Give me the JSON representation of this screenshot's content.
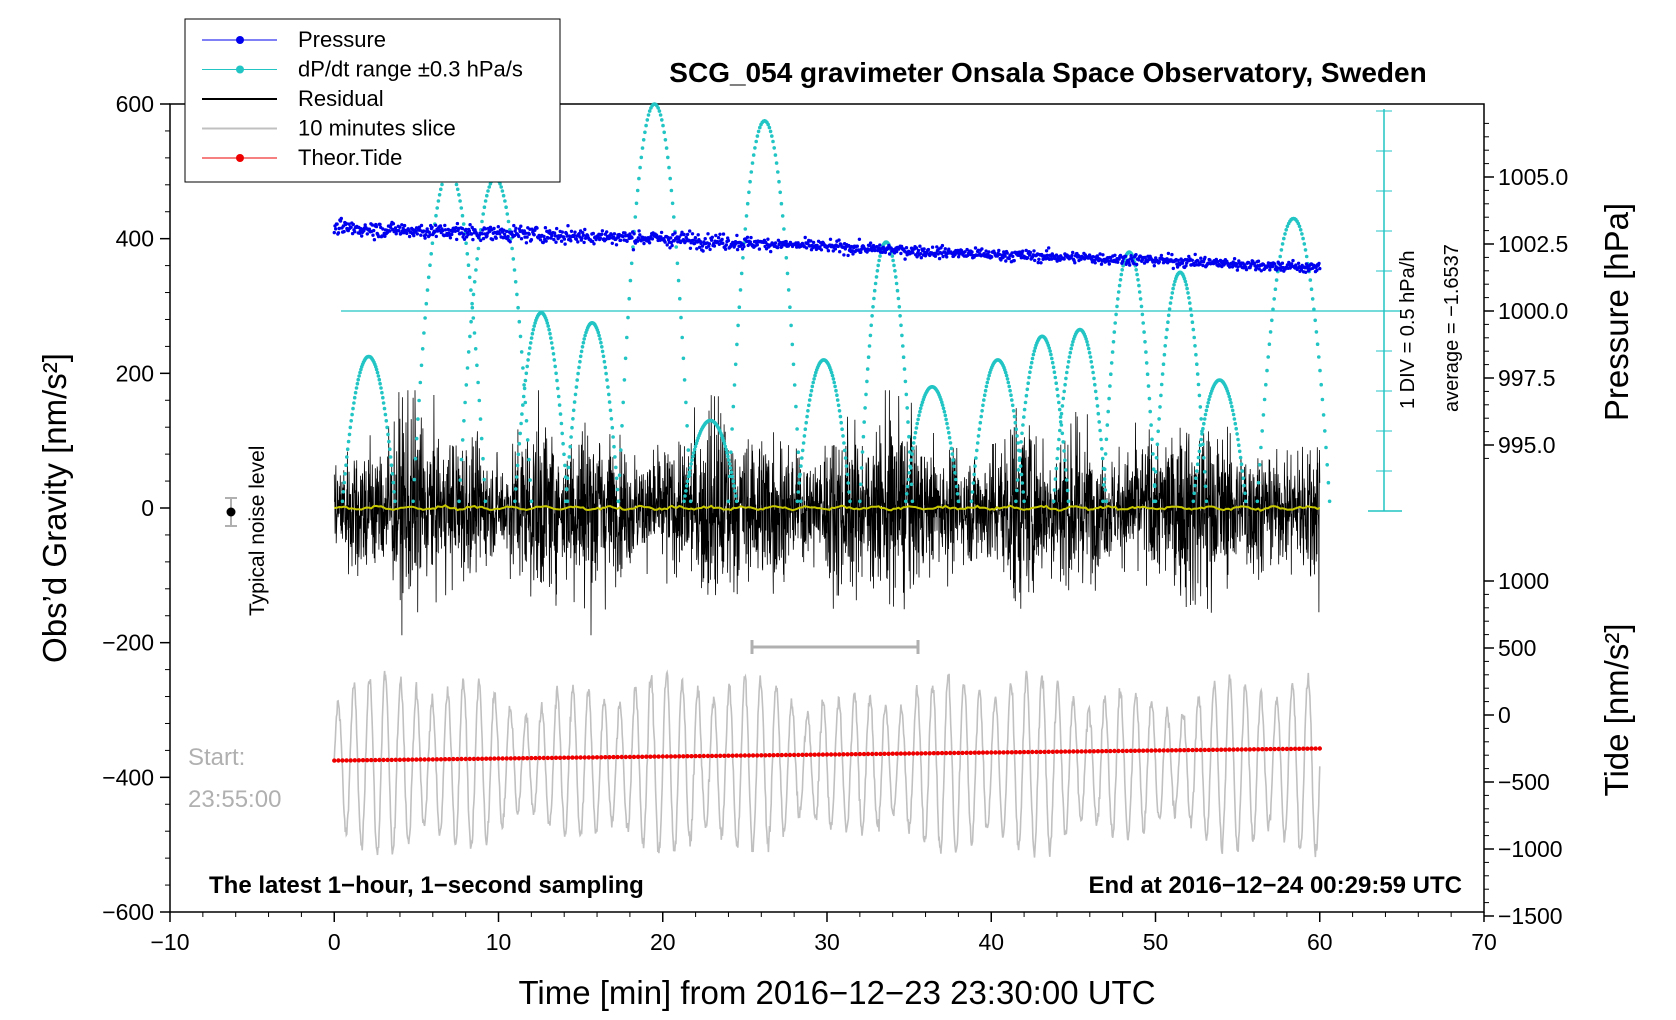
{
  "chart_data": {
    "type": "line",
    "title": "SCG_054 gravimeter Onsala Space Observatory, Sweden",
    "xlabel": "Time [min] from 2016−12−23 23:30:00 UTC",
    "ylabel_left": "Obs’d Gravity [nm/s²]",
    "ylabel_right_pressure": "Pressure [hPa]",
    "ylabel_right_tide": "Tide [nm/s²]",
    "xlim": [
      -10,
      70
    ],
    "ylim": [
      -600,
      600
    ],
    "x_ticks": [
      "−10",
      "0",
      "10",
      "20",
      "30",
      "40",
      "50",
      "60",
      "70"
    ],
    "y_ticks": [
      "−600",
      "−400",
      "−200",
      "0",
      "200",
      "400",
      "600"
    ],
    "pressure_ticks": [
      "995.0",
      "997.5",
      "1000.0",
      "1002.5",
      "1005.0"
    ],
    "tide_ticks": [
      "−1500",
      "−1000",
      "−500",
      "0",
      "500",
      "1000"
    ],
    "legend": {
      "position": "top-left",
      "entries": [
        {
          "label": "Pressure",
          "color": "#0000ee",
          "style": "line-dot"
        },
        {
          "label": "dP/dt range ±0.3 hPa/s",
          "color": "#22c4c4",
          "style": "line-dot"
        },
        {
          "label": "Residual",
          "color": "#000000",
          "style": "line"
        },
        {
          "label": "10 minutes slice",
          "color": "#c0c0c0",
          "style": "line"
        },
        {
          "label": "Theor.Tide",
          "color": "#ee0000",
          "style": "line-dot"
        }
      ]
    },
    "annotations": {
      "noise_level": "Typical noise level",
      "start_label": "Start:",
      "start_time": "23:55:00",
      "bottom_left": "The latest 1−hour, 1−second sampling",
      "bottom_right": "End at 2016−12−24 00:29:59 UTC",
      "div_label": "1 DIV = 0.5 hPa/h",
      "average_label": "average = −1.6537"
    },
    "series": [
      {
        "name": "Pressure",
        "unit": "hPa",
        "x": [
          0,
          10,
          20,
          30,
          40,
          50,
          60
        ],
        "values": [
          1003.1,
          1002.9,
          1002.7,
          1002.4,
          1002.1,
          1001.9,
          1001.6
        ]
      },
      {
        "name": "dP/dt",
        "peaks_x": [
          2.1,
          7,
          9.8,
          12.6,
          15.7,
          19.5,
          22.9,
          26.2,
          29.8,
          33.6,
          36.4,
          40.4,
          43.1,
          45.4,
          48.4,
          51.5,
          53.9,
          58.4
        ],
        "peaks_y": [
          225,
          500,
          490,
          290,
          275,
          600,
          130,
          575,
          220,
          395,
          180,
          220,
          255,
          265,
          380,
          350,
          190,
          430
        ]
      },
      {
        "name": "Residual",
        "unit": "nm/s²",
        "x_range": [
          0,
          60
        ],
        "center": 0,
        "typical_amplitude": 120
      },
      {
        "name": "10 minutes slice",
        "x_range": [
          0,
          60
        ],
        "center": -380,
        "typical_amplitude": 100,
        "window_minutes": [
          25,
          35
        ]
      },
      {
        "name": "Theor.Tide",
        "unit": "nm/s²",
        "x": [
          0,
          60
        ],
        "values": [
          -340,
          -250
        ]
      }
    ],
    "noise_level": {
      "x": -7,
      "y": 0,
      "err": 20
    }
  }
}
